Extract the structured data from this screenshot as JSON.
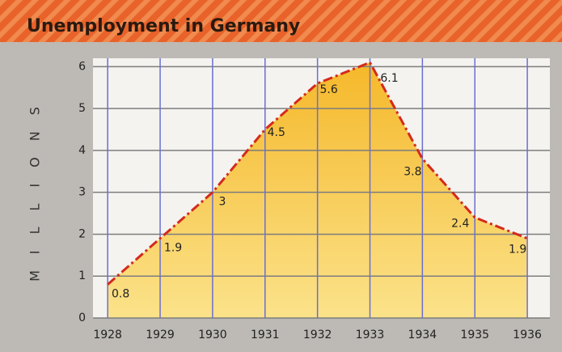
{
  "chart_data": {
    "type": "area",
    "title": "Unemployment in Germany",
    "y_label": "MILLIONS",
    "x": [
      1928,
      1929,
      1930,
      1931,
      1932,
      1933,
      1934,
      1935,
      1936
    ],
    "values": [
      0.8,
      1.9,
      3,
      4.5,
      5.6,
      6.1,
      3.8,
      2.4,
      1.9
    ],
    "xlim": [
      1927.72,
      1936.43
    ],
    "ylim": [
      0,
      6.2
    ],
    "xticks": [
      1928,
      1929,
      1930,
      1931,
      1932,
      1933,
      1934,
      1935,
      1936
    ],
    "yticks": [
      0,
      1,
      2,
      3,
      4,
      5,
      6
    ],
    "color": "#d42a1c",
    "fill": "#f7c431",
    "grid": true
  }
}
